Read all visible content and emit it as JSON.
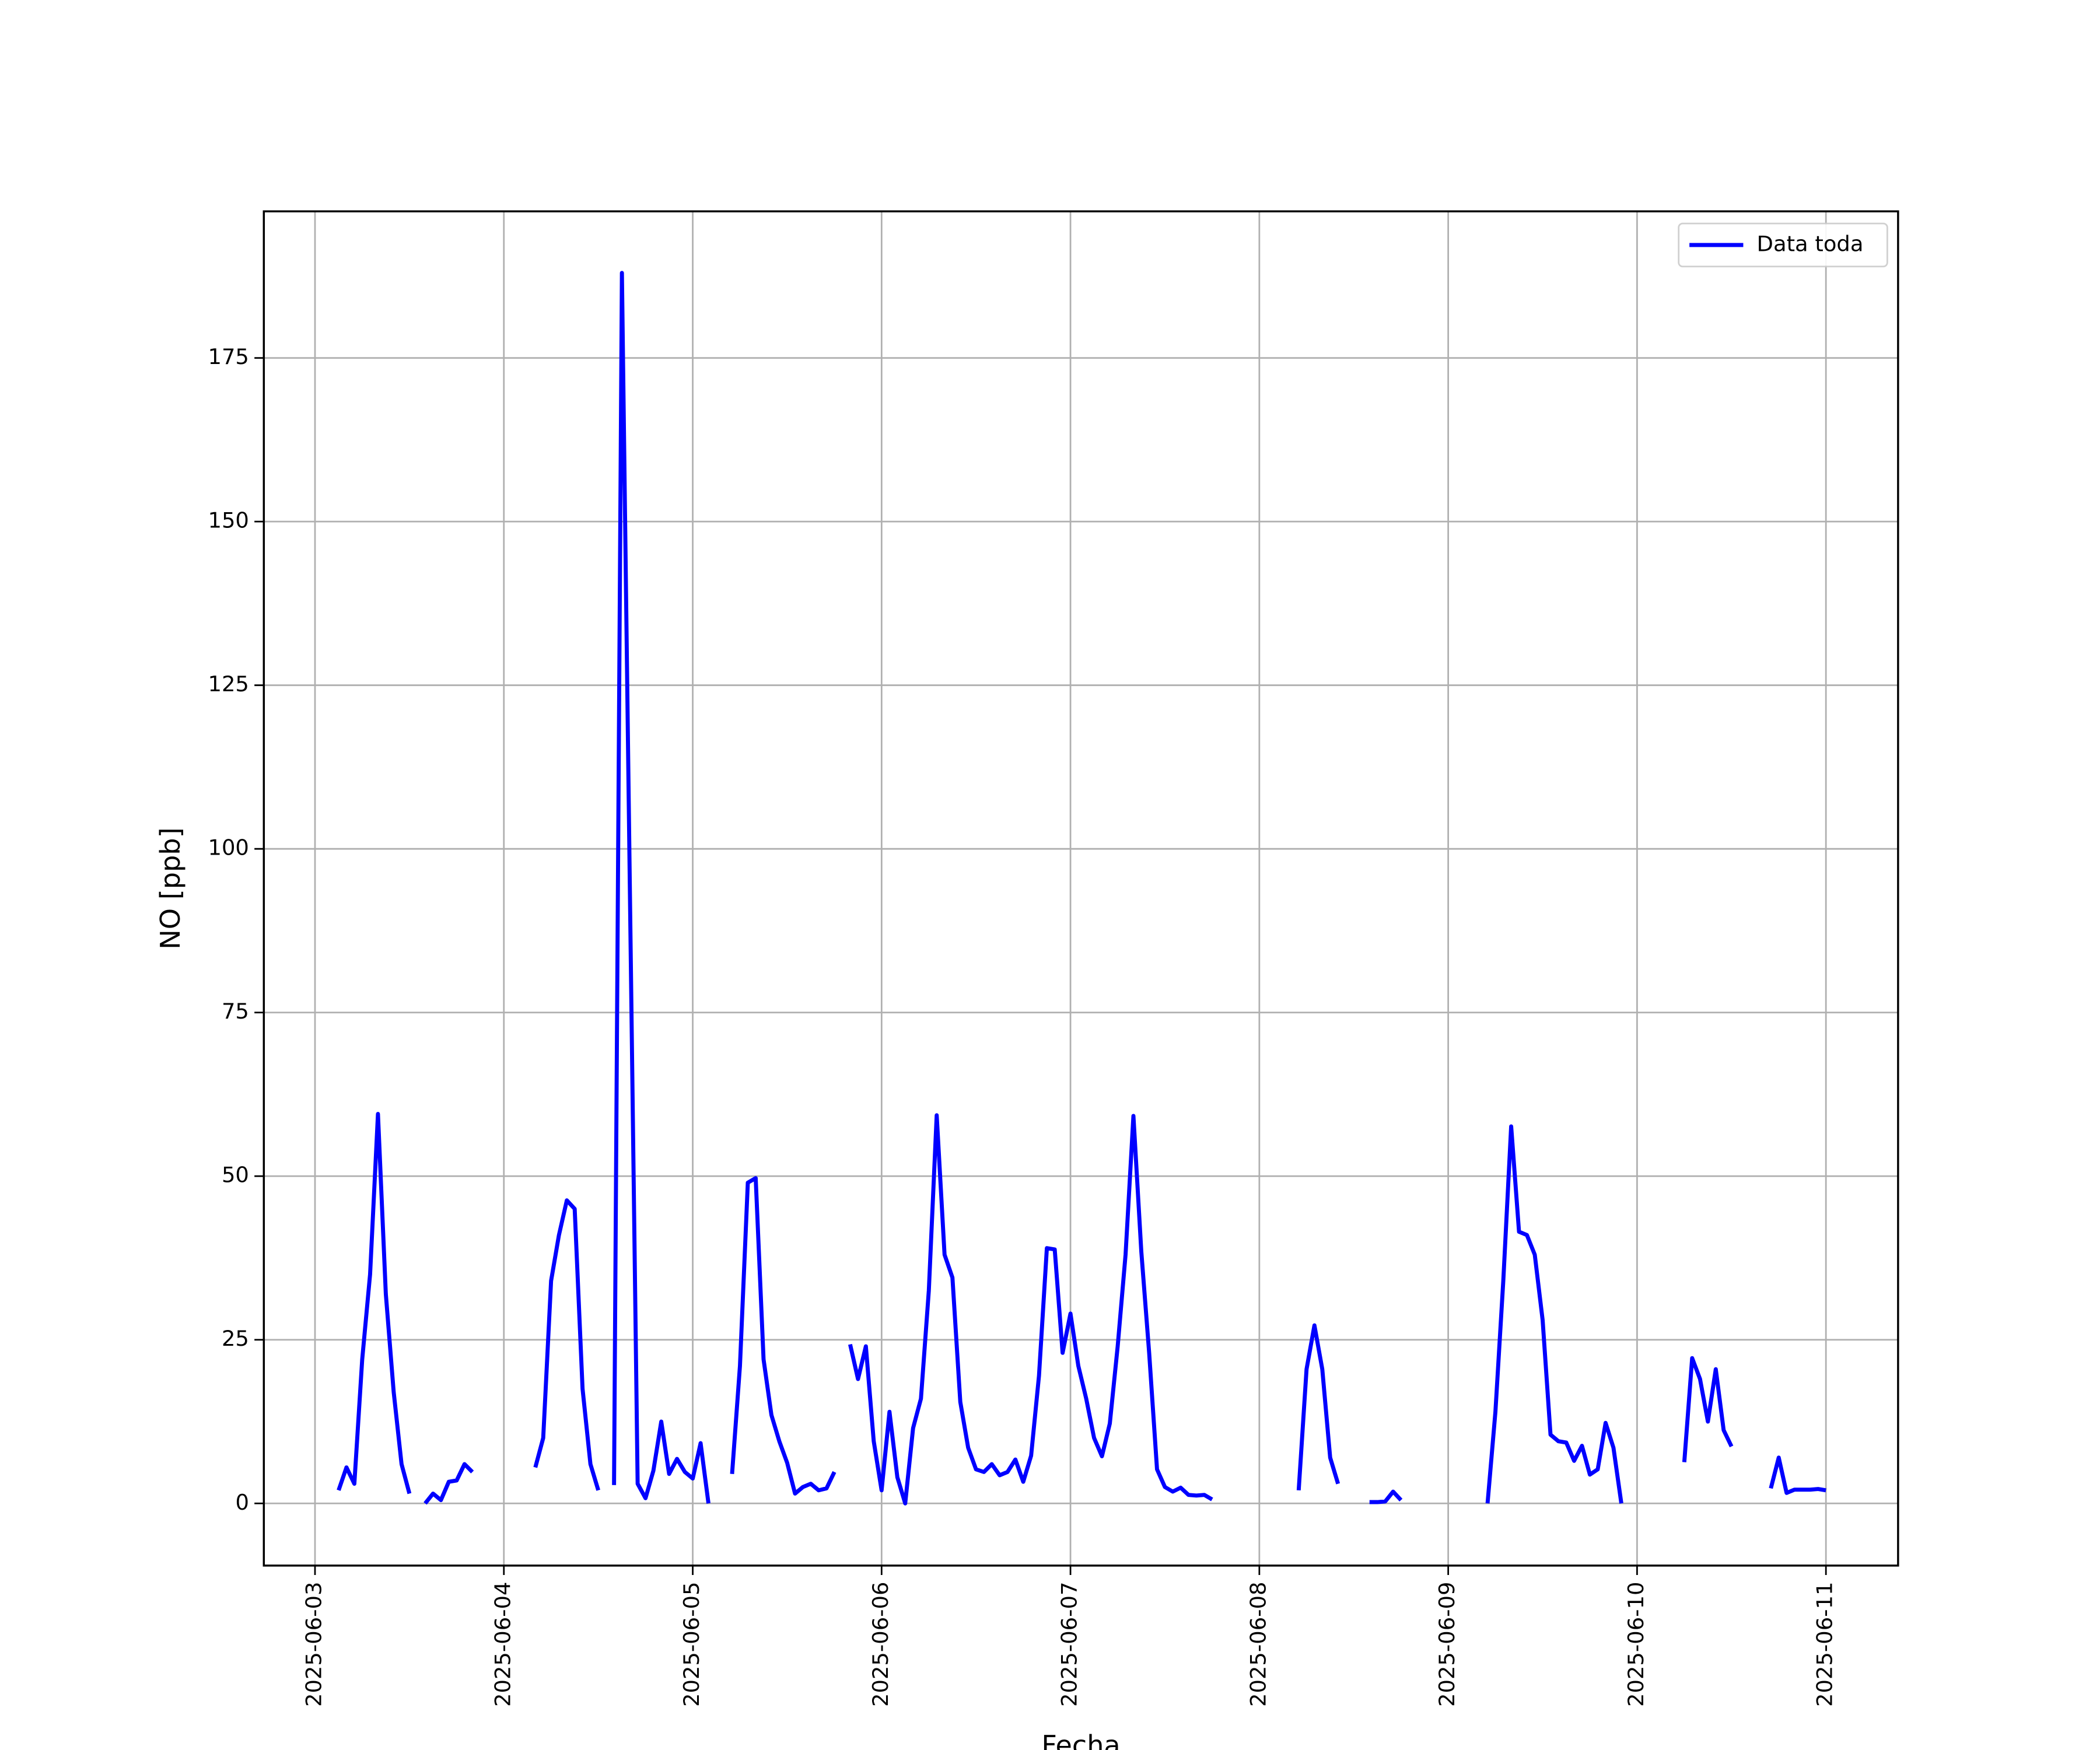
{
  "chart_data": {
    "type": "line",
    "xlabel": "Fecha",
    "ylabel": "NO [ppb]",
    "x": [
      "2025-06-03T03:00",
      "2025-06-03T04:00",
      "2025-06-03T05:00",
      "2025-06-03T06:00",
      "2025-06-03T07:00",
      "2025-06-03T08:00",
      "2025-06-03T09:00",
      "2025-06-03T10:00",
      "2025-06-03T11:00",
      "2025-06-03T12:00",
      "2025-06-03T13:00",
      "2025-06-03T14:00",
      "2025-06-03T15:00",
      "2025-06-03T16:00",
      "2025-06-03T17:00",
      "2025-06-03T18:00",
      "2025-06-03T19:00",
      "2025-06-03T20:00",
      "2025-06-03T21:00",
      "2025-06-04T04:00",
      "2025-06-04T05:00",
      "2025-06-04T06:00",
      "2025-06-04T07:00",
      "2025-06-04T08:00",
      "2025-06-04T09:00",
      "2025-06-04T10:00",
      "2025-06-04T11:00",
      "2025-06-04T12:00",
      "2025-06-04T13:00",
      "2025-06-04T14:00",
      "2025-06-04T15:00",
      "2025-06-04T16:00",
      "2025-06-04T17:00",
      "2025-06-04T18:00",
      "2025-06-04T19:00",
      "2025-06-04T20:00",
      "2025-06-04T21:00",
      "2025-06-04T22:00",
      "2025-06-04T23:00",
      "2025-06-05T00:00",
      "2025-06-05T01:00",
      "2025-06-05T02:00",
      "2025-06-05T03:00",
      "2025-06-05T05:00",
      "2025-06-05T06:00",
      "2025-06-05T07:00",
      "2025-06-05T08:00",
      "2025-06-05T09:00",
      "2025-06-05T10:00",
      "2025-06-05T11:00",
      "2025-06-05T12:00",
      "2025-06-05T13:00",
      "2025-06-05T14:00",
      "2025-06-05T15:00",
      "2025-06-05T16:00",
      "2025-06-05T17:00",
      "2025-06-05T18:00",
      "2025-06-05T19:00",
      "2025-06-05T20:00",
      "2025-06-05T21:00",
      "2025-06-05T22:00",
      "2025-06-05T23:00",
      "2025-06-06T00:00",
      "2025-06-06T01:00",
      "2025-06-06T02:00",
      "2025-06-06T03:00",
      "2025-06-06T04:00",
      "2025-06-06T05:00",
      "2025-06-06T06:00",
      "2025-06-06T07:00",
      "2025-06-06T08:00",
      "2025-06-06T09:00",
      "2025-06-06T10:00",
      "2025-06-06T11:00",
      "2025-06-06T12:00",
      "2025-06-06T13:00",
      "2025-06-06T14:00",
      "2025-06-06T15:00",
      "2025-06-06T16:00",
      "2025-06-06T17:00",
      "2025-06-06T18:00",
      "2025-06-06T19:00",
      "2025-06-06T20:00",
      "2025-06-06T21:00",
      "2025-06-06T22:00",
      "2025-06-06T23:00",
      "2025-06-07T00:00",
      "2025-06-07T01:00",
      "2025-06-07T02:00",
      "2025-06-07T03:00",
      "2025-06-07T04:00",
      "2025-06-07T05:00",
      "2025-06-07T06:00",
      "2025-06-07T07:00",
      "2025-06-07T08:00",
      "2025-06-07T09:00",
      "2025-06-07T10:00",
      "2025-06-07T11:00",
      "2025-06-07T12:00",
      "2025-06-07T13:00",
      "2025-06-07T14:00",
      "2025-06-07T15:00",
      "2025-06-07T16:00",
      "2025-06-07T17:00",
      "2025-06-07T18:00",
      "2025-06-07T19:00",
      "2025-06-08T05:00",
      "2025-06-08T06:00",
      "2025-06-08T07:00",
      "2025-06-08T08:00",
      "2025-06-08T09:00",
      "2025-06-08T10:00",
      "2025-06-08T11:00",
      "2025-06-08T14:00",
      "2025-06-08T15:00",
      "2025-06-08T16:00",
      "2025-06-08T17:00",
      "2025-06-08T18:00",
      "2025-06-08T19:00",
      "2025-06-09T05:00",
      "2025-06-09T06:00",
      "2025-06-09T07:00",
      "2025-06-09T08:00",
      "2025-06-09T09:00",
      "2025-06-09T10:00",
      "2025-06-09T11:00",
      "2025-06-09T12:00",
      "2025-06-09T13:00",
      "2025-06-09T14:00",
      "2025-06-09T15:00",
      "2025-06-09T16:00",
      "2025-06-09T17:00",
      "2025-06-09T18:00",
      "2025-06-09T19:00",
      "2025-06-09T20:00",
      "2025-06-09T21:00",
      "2025-06-09T22:00",
      "2025-06-09T23:00",
      "2025-06-10T06:00",
      "2025-06-10T07:00",
      "2025-06-10T08:00",
      "2025-06-10T09:00",
      "2025-06-10T10:00",
      "2025-06-10T11:00",
      "2025-06-10T12:00",
      "2025-06-10T13:00",
      "2025-06-10T17:00",
      "2025-06-10T18:00",
      "2025-06-10T19:00",
      "2025-06-10T20:00",
      "2025-06-10T21:00",
      "2025-06-10T22:00",
      "2025-06-10T23:00",
      "2025-06-11T00:00"
    ],
    "series": [
      {
        "name": "Data toda",
        "color": "#0000ff",
        "values": [
          2,
          5.5,
          3,
          22,
          35,
          59.5,
          32,
          17,
          6,
          1.5,
          null,
          0,
          1.5,
          0.5,
          3.3,
          3.5,
          6,
          4.8,
          null,
          5.5,
          10,
          34,
          41,
          46.3,
          45,
          17.5,
          6,
          2,
          null,
          2.8,
          188,
          95,
          3,
          0.8,
          5,
          12.5,
          4.5,
          6.8,
          4.8,
          3.8,
          9.2,
          0,
          null,
          4.5,
          21,
          49,
          49.7,
          22,
          13.5,
          9.5,
          6.2,
          1.5,
          2.5,
          3,
          2,
          2.3,
          4.8,
          null,
          24.3,
          19,
          24,
          9.5,
          2,
          14,
          4,
          0,
          11.5,
          16,
          32.5,
          59.3,
          38,
          34.5,
          15.5,
          8.5,
          5.2,
          4.8,
          6,
          4.3,
          4.8,
          6.7,
          3.3,
          7.3,
          19.5,
          39,
          38.8,
          23,
          29,
          21,
          16,
          10,
          7.2,
          12.2,
          24,
          38,
          59.2,
          38.5,
          23,
          5.2,
          2.5,
          1.8,
          2.4,
          1.3,
          1.2,
          1.3,
          0.6,
          null,
          2,
          20.5,
          27.2,
          20.5,
          7,
          3,
          null,
          0.2,
          0.2,
          0.3,
          1.8,
          0.5,
          null,
          0,
          14,
          34,
          57.6,
          41.5,
          41,
          38,
          28,
          10.5,
          9.5,
          9.3,
          6.5,
          8.8,
          4.4,
          5.2,
          12.3,
          8.5,
          0,
          null,
          6.3,
          22.2,
          19,
          12.5,
          20.5,
          11.2,
          8.7,
          null,
          2.3,
          7,
          1.6,
          2.1,
          2.1,
          2.1,
          2.2,
          2
        ]
      }
    ],
    "xlim": [
      "2025-06-02T17:30",
      "2025-06-11T09:10"
    ],
    "xticks": [
      "2025-06-03",
      "2025-06-04",
      "2025-06-05",
      "2025-06-06",
      "2025-06-07",
      "2025-06-08",
      "2025-06-09",
      "2025-06-10",
      "2025-06-11"
    ],
    "ylim": [
      -9.5,
      197.4
    ],
    "yticks": [
      0,
      25,
      50,
      75,
      100,
      125,
      150,
      175
    ],
    "grid": true,
    "legend": "upper right"
  }
}
